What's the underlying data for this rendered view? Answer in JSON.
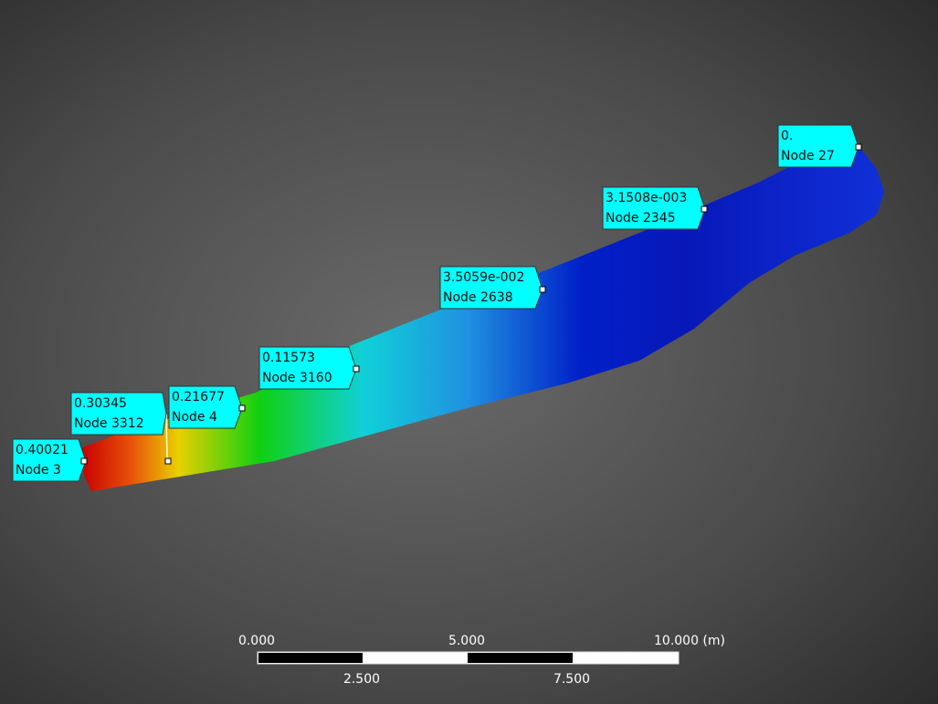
{
  "probes": [
    {
      "value": "0.40021",
      "node": "Node 3"
    },
    {
      "value": "0.30345",
      "node": "Node 3312"
    },
    {
      "value": "0.21677",
      "node": "Node 4"
    },
    {
      "value": "0.11573",
      "node": "Node 3160"
    },
    {
      "value": "3.5059e-002",
      "node": "Node 2638"
    },
    {
      "value": "3.1508e-003",
      "node": "Node 2345"
    },
    {
      "value": "0.",
      "node": "Node 27"
    }
  ],
  "scale_bar": {
    "top_labels": [
      "0.000",
      "5.000",
      "10.000 (m)"
    ],
    "bottom_labels": [
      "2.500",
      "7.500"
    ]
  }
}
